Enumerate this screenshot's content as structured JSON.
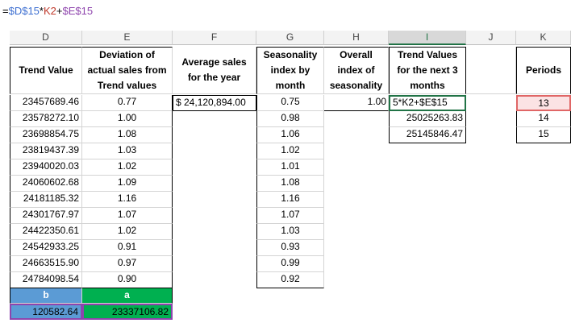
{
  "formula": {
    "eq": "=",
    "part1": "$D$15",
    "op1": "*",
    "part2": "K2",
    "op2": "+",
    "part3": "$E$15"
  },
  "columns": [
    "D",
    "E",
    "F",
    "G",
    "H",
    "I",
    "J",
    "K"
  ],
  "headers": {
    "D": "Trend Value",
    "E": "Deviation of actual sales from Trend values",
    "F": "Average sales for the year",
    "G": "Seasonality index by month",
    "H": "Overall index of seasonality",
    "I": "Trend Values for the next 3 months",
    "K": "Periods"
  },
  "trend_values": [
    "23457689.46",
    "23578272.10",
    "23698854.75",
    "23819437.39",
    "23940020.03",
    "24060602.68",
    "24181185.32",
    "24301767.97",
    "24422350.61",
    "24542933.25",
    "24663515.90",
    "24784098.54"
  ],
  "deviation": [
    "0.77",
    "1.00",
    "1.08",
    "1.03",
    "1.02",
    "1.09",
    "1.16",
    "1.07",
    "1.02",
    "0.91",
    "0.97",
    "0.90"
  ],
  "average_sales": "$ 24,120,894.00",
  "seasonality": [
    "0.75",
    "0.98",
    "1.06",
    "1.02",
    "1.01",
    "1.08",
    "1.16",
    "1.07",
    "1.03",
    "0.93",
    "0.99",
    "0.92"
  ],
  "overall_index": "1.00",
  "editing_text": "5*K2+$E$15",
  "trend_next": [
    "25025263.83",
    "25145846.47"
  ],
  "periods": [
    "13",
    "14",
    "15"
  ],
  "b_label": "b",
  "a_label": "a",
  "b_value": "120582.64",
  "a_value": "23337106.82",
  "colors": {
    "b_fill": "#5b9bd5",
    "a_fill": "#00b050",
    "sel_green": "#217346",
    "period_red": "#f8d7da"
  }
}
